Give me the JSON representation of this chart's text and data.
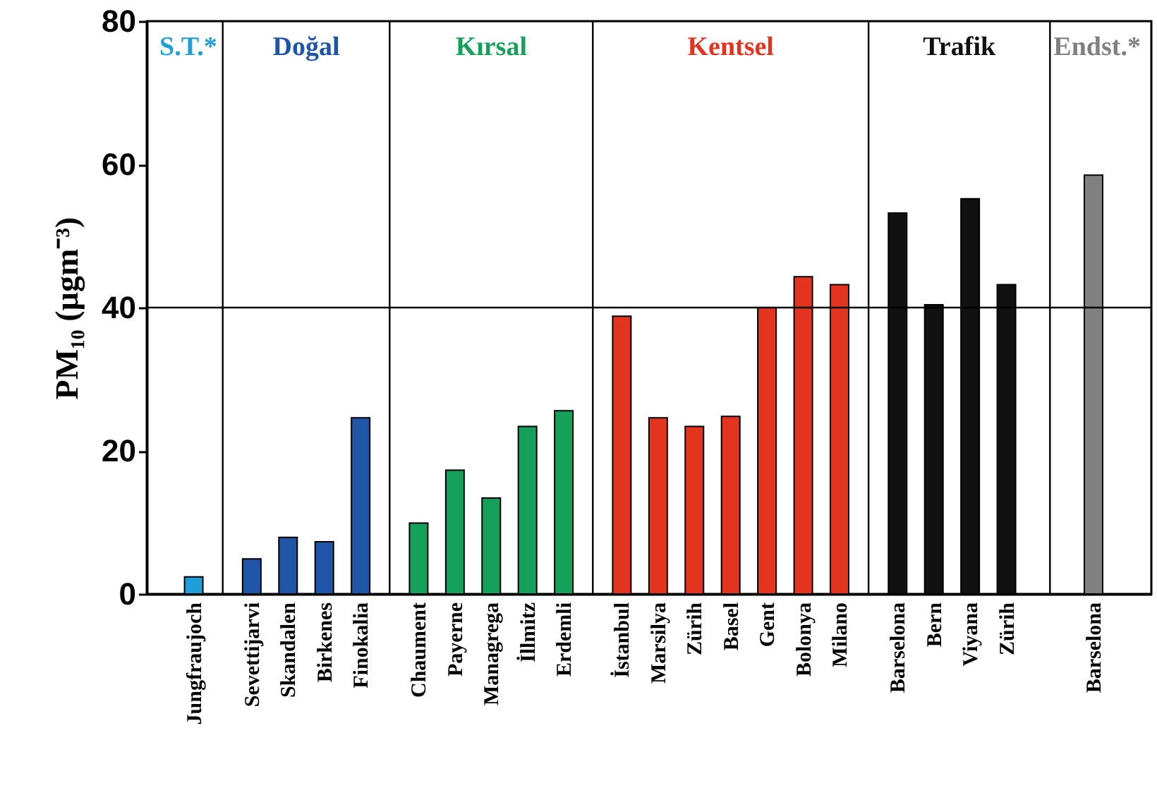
{
  "chart_data": {
    "type": "bar",
    "ylabel": "PM₁₀ (µgm⁻³)",
    "categories": [
      "Jungfraujoch",
      "Sevettijarvi",
      "Skandalen",
      "Birkenes",
      "Finokalia",
      "Chaument",
      "Payerne",
      "Managrega",
      "İllmitz",
      "Erdemli",
      "İstanbul",
      "Marsilya",
      "Zürih",
      "Basel",
      "Gent",
      "Bolonya",
      "Milano",
      "Barselona",
      "Bern",
      "Viyana",
      "Zürih",
      "Barselona"
    ],
    "series": [
      {
        "name": "S.T.*",
        "color": "#1e9fd8",
        "values": [
          2.4,
          null,
          null,
          null,
          null,
          null,
          null,
          null,
          null,
          null,
          null,
          null,
          null,
          null,
          null,
          null,
          null,
          null,
          null,
          null,
          null,
          null
        ]
      },
      {
        "name": "Doğal",
        "color": "#1f55a5",
        "values": [
          null,
          4.9,
          7.9,
          7.3,
          24.6,
          null,
          null,
          null,
          null,
          null,
          null,
          null,
          null,
          null,
          null,
          null,
          null,
          null,
          null,
          null,
          null,
          null
        ]
      },
      {
        "name": "Kırsal",
        "color": "#16a15a",
        "values": [
          null,
          null,
          null,
          null,
          null,
          9.9,
          17.3,
          13.4,
          23.4,
          25.6,
          null,
          null,
          null,
          null,
          null,
          null,
          null,
          null,
          null,
          null,
          null,
          null
        ]
      },
      {
        "name": "Kentsel",
        "color": "#e2341f",
        "values": [
          null,
          null,
          null,
          null,
          null,
          null,
          null,
          null,
          null,
          null,
          38.8,
          24.6,
          23.4,
          24.8,
          40,
          44.3,
          43.2,
          null,
          null,
          null,
          null,
          null
        ]
      },
      {
        "name": "Trafik",
        "color": "#111111",
        "values": [
          null,
          null,
          null,
          null,
          null,
          null,
          null,
          null,
          null,
          null,
          null,
          null,
          null,
          null,
          null,
          null,
          null,
          53.2,
          40.4,
          55.2,
          43.2,
          null
        ]
      },
      {
        "name": "Endst.*",
        "color": "#808080",
        "values": [
          null,
          null,
          null,
          null,
          null,
          null,
          null,
          null,
          null,
          null,
          null,
          null,
          null,
          null,
          null,
          null,
          null,
          null,
          null,
          null,
          null,
          58.5
        ]
      }
    ],
    "ylim": [
      0,
      80
    ],
    "yticks": [
      0,
      20,
      40,
      60,
      80
    ],
    "ref_lines": [
      {
        "axis": "y",
        "value": 40
      }
    ]
  }
}
